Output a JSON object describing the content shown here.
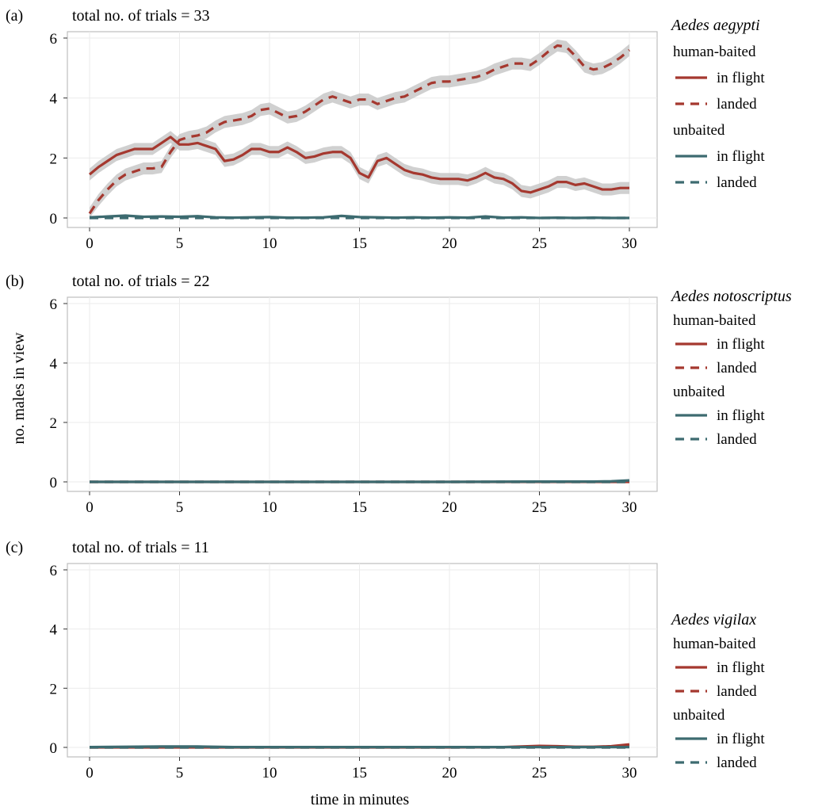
{
  "xlabel": "time in minutes",
  "ylabel": "no. males in view",
  "colors": {
    "human": "#a5382f",
    "unbaited": "#3d6b70",
    "ribbon": "#c8c8c8"
  },
  "legend": {
    "group1": "human-baited",
    "group2": "unbaited",
    "flight": "in flight",
    "landed": "landed"
  },
  "chart_data": [
    {
      "type": "line",
      "panel_label": "(a)",
      "title": "total no. of trials = 33",
      "species": "Aedes aegypti",
      "xlim": [
        0,
        30
      ],
      "ylim": [
        0,
        6
      ],
      "xticks": [
        0,
        5,
        10,
        15,
        20,
        25,
        30
      ],
      "yticks": [
        0,
        2,
        4,
        6
      ],
      "series": [
        {
          "name": "human-baited in flight",
          "group": "human",
          "style": "solid",
          "ribbon": true,
          "x": [
            0,
            0.5,
            1,
            1.5,
            2,
            2.5,
            3,
            3.5,
            4,
            4.5,
            5,
            5.5,
            6,
            6.5,
            7,
            7.5,
            8,
            8.5,
            9,
            9.5,
            10,
            10.5,
            11,
            11.5,
            12,
            12.5,
            13,
            13.5,
            14,
            14.5,
            15,
            15.5,
            16,
            16.5,
            17,
            17.5,
            18,
            18.5,
            19,
            19.5,
            20,
            20.5,
            21,
            21.5,
            22,
            22.5,
            23,
            23.5,
            24,
            24.5,
            25,
            25.5,
            26,
            26.5,
            27,
            27.5,
            28,
            28.5,
            29,
            29.5,
            30
          ],
          "y": [
            1.45,
            1.7,
            1.9,
            2.1,
            2.2,
            2.3,
            2.3,
            2.3,
            2.5,
            2.7,
            2.45,
            2.45,
            2.5,
            2.4,
            2.3,
            1.9,
            1.95,
            2.1,
            2.3,
            2.3,
            2.2,
            2.2,
            2.35,
            2.2,
            2.0,
            2.05,
            2.15,
            2.2,
            2.2,
            2.0,
            1.5,
            1.35,
            1.9,
            2.0,
            1.8,
            1.6,
            1.5,
            1.45,
            1.35,
            1.3,
            1.3,
            1.3,
            1.25,
            1.35,
            1.5,
            1.35,
            1.3,
            1.15,
            0.9,
            0.85,
            0.95,
            1.05,
            1.2,
            1.2,
            1.1,
            1.15,
            1.05,
            0.95,
            0.95,
            1.0,
            1.0
          ]
        },
        {
          "name": "human-baited landed",
          "group": "human",
          "style": "dashed",
          "ribbon": true,
          "x": [
            0,
            0.5,
            1,
            1.5,
            2,
            2.5,
            3,
            3.5,
            4,
            4.5,
            5,
            5.5,
            6,
            6.5,
            7,
            7.5,
            8,
            8.5,
            9,
            9.5,
            10,
            10.5,
            11,
            11.5,
            12,
            12.5,
            13,
            13.5,
            14,
            14.5,
            15,
            15.5,
            16,
            16.5,
            17,
            17.5,
            18,
            18.5,
            19,
            19.5,
            20,
            20.5,
            21,
            21.5,
            22,
            22.5,
            23,
            23.5,
            24,
            24.5,
            25,
            25.5,
            26,
            26.5,
            27,
            27.5,
            28,
            28.5,
            29,
            29.5,
            30
          ],
          "y": [
            0.15,
            0.6,
            0.95,
            1.25,
            1.45,
            1.55,
            1.65,
            1.65,
            1.7,
            2.2,
            2.6,
            2.7,
            2.75,
            2.85,
            3.05,
            3.2,
            3.25,
            3.3,
            3.4,
            3.6,
            3.65,
            3.5,
            3.35,
            3.4,
            3.55,
            3.75,
            3.95,
            4.05,
            3.95,
            3.85,
            3.95,
            3.95,
            3.8,
            3.9,
            4.0,
            4.05,
            4.2,
            4.35,
            4.5,
            4.55,
            4.55,
            4.6,
            4.65,
            4.7,
            4.8,
            4.95,
            5.05,
            5.15,
            5.15,
            5.1,
            5.3,
            5.55,
            5.75,
            5.7,
            5.4,
            5.05,
            4.95,
            5.0,
            5.15,
            5.35,
            5.6
          ]
        },
        {
          "name": "unbaited in flight",
          "group": "unbaited",
          "style": "solid",
          "ribbon": false,
          "x": [
            0,
            1,
            2,
            3,
            4,
            5,
            6,
            7,
            8,
            9,
            10,
            11,
            12,
            13,
            14,
            15,
            16,
            17,
            18,
            19,
            20,
            21,
            22,
            23,
            24,
            25,
            26,
            27,
            28,
            29,
            30
          ],
          "y": [
            0.02,
            0.05,
            0.08,
            0.04,
            0.05,
            0.04,
            0.06,
            0.02,
            0.01,
            0.02,
            0.03,
            0.01,
            0.01,
            0.02,
            0.07,
            0.03,
            0.02,
            0.01,
            0.02,
            0.01,
            0.02,
            0.01,
            0.05,
            0.01,
            0.02,
            0.0,
            0.01,
            0.0,
            0.01,
            0.0,
            0.0
          ]
        },
        {
          "name": "unbaited landed",
          "group": "unbaited",
          "style": "dashed",
          "ribbon": false,
          "x": [
            0,
            5,
            10,
            15,
            20,
            25,
            30
          ],
          "y": [
            0,
            0,
            0,
            0,
            0,
            0,
            0
          ]
        }
      ]
    },
    {
      "type": "line",
      "panel_label": "(b)",
      "title": "total no. of trials = 22",
      "species": "Aedes notoscriptus",
      "xlim": [
        0,
        30
      ],
      "ylim": [
        0,
        6
      ],
      "xticks": [
        0,
        5,
        10,
        15,
        20,
        25,
        30
      ],
      "yticks": [
        0,
        2,
        4,
        6
      ],
      "series": [
        {
          "name": "human-baited in flight",
          "group": "human",
          "style": "solid",
          "ribbon": false,
          "x": [
            0,
            5,
            10,
            15,
            20,
            25,
            30
          ],
          "y": [
            0,
            0,
            0,
            0,
            0,
            0,
            0
          ]
        },
        {
          "name": "human-baited landed",
          "group": "human",
          "style": "dashed",
          "ribbon": false,
          "x": [
            0,
            5,
            10,
            15,
            20,
            25,
            30
          ],
          "y": [
            0,
            0,
            0,
            0,
            0,
            0,
            0
          ]
        },
        {
          "name": "unbaited in flight",
          "group": "unbaited",
          "style": "solid",
          "ribbon": false,
          "x": [
            0,
            5,
            10,
            15,
            20,
            25,
            28,
            29,
            30
          ],
          "y": [
            0,
            0,
            0,
            0,
            0,
            0.01,
            0.01,
            0.02,
            0.05
          ]
        },
        {
          "name": "unbaited landed",
          "group": "unbaited",
          "style": "dashed",
          "ribbon": false,
          "x": [
            0,
            5,
            10,
            15,
            20,
            25,
            30
          ],
          "y": [
            0,
            0,
            0,
            0,
            0,
            0,
            0
          ]
        }
      ]
    },
    {
      "type": "line",
      "panel_label": "(c)",
      "title": "total no. of trials = 11",
      "species": "Aedes vigilax",
      "xlim": [
        0,
        30
      ],
      "ylim": [
        0,
        6
      ],
      "xticks": [
        0,
        5,
        10,
        15,
        20,
        25,
        30
      ],
      "yticks": [
        0,
        2,
        4,
        6
      ],
      "series": [
        {
          "name": "human-baited in flight",
          "group": "human",
          "style": "solid",
          "ribbon": false,
          "x": [
            0,
            5,
            10,
            15,
            20,
            23,
            24,
            25,
            26,
            27,
            28,
            29,
            30
          ],
          "y": [
            0,
            0,
            0,
            0,
            0,
            0.01,
            0.03,
            0.05,
            0.04,
            0.02,
            0.02,
            0.04,
            0.1
          ]
        },
        {
          "name": "human-baited landed",
          "group": "human",
          "style": "dashed",
          "ribbon": false,
          "x": [
            0,
            5,
            10,
            15,
            20,
            25,
            30
          ],
          "y": [
            0,
            0,
            0,
            0,
            0,
            0,
            0
          ]
        },
        {
          "name": "unbaited in flight",
          "group": "unbaited",
          "style": "solid",
          "ribbon": false,
          "x": [
            0,
            2,
            4,
            6,
            8,
            10,
            15,
            20,
            25,
            30
          ],
          "y": [
            0.01,
            0.02,
            0.03,
            0.03,
            0.01,
            0.01,
            0.01,
            0.01,
            0.01,
            0.01
          ]
        },
        {
          "name": "unbaited landed",
          "group": "unbaited",
          "style": "dashed",
          "ribbon": false,
          "x": [
            0,
            5,
            10,
            15,
            20,
            25,
            30
          ],
          "y": [
            0,
            0,
            0,
            0,
            0,
            0,
            0
          ]
        }
      ]
    }
  ]
}
